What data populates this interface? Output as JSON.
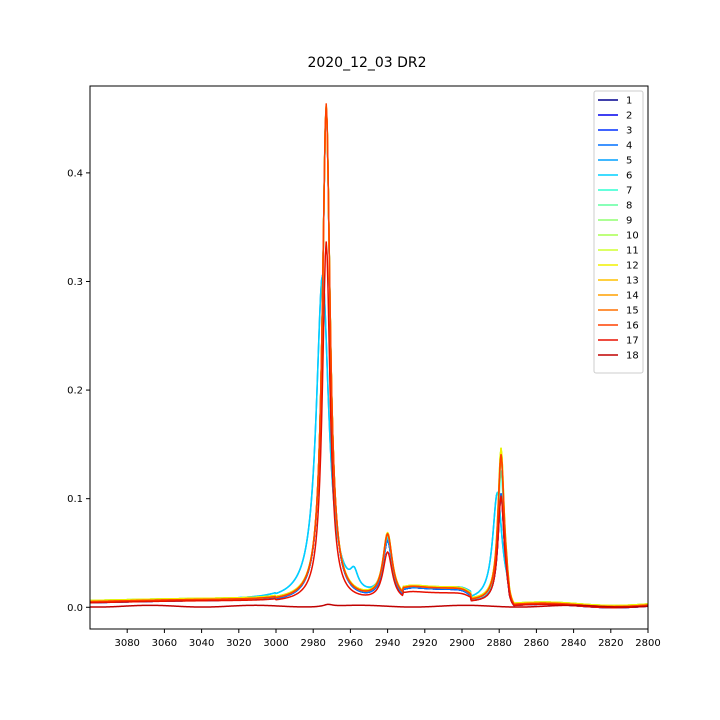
{
  "chart_data": {
    "type": "line",
    "title": "2020_12_03 DR2",
    "xlabel": "",
    "ylabel": "",
    "x_reversed": true,
    "xlim": [
      3100,
      2800
    ],
    "ylim": [
      -0.02,
      0.48
    ],
    "x_ticks": [
      3080,
      3060,
      3040,
      3020,
      3000,
      2980,
      2960,
      2940,
      2920,
      2900,
      2880,
      2860,
      2840,
      2820,
      2800
    ],
    "y_ticks": [
      0.0,
      0.1,
      0.2,
      0.3,
      0.4
    ],
    "y_tick_labels": [
      "0.0",
      "0.1",
      "0.2",
      "0.3",
      "0.4"
    ],
    "grid": false,
    "legend_position": "top-right",
    "series": [
      {
        "name": "1",
        "color": "#00008f",
        "profile": "A",
        "baseline": 0.004,
        "peaks": [
          {
            "x": 2973,
            "h": 0.455,
            "w": 2.5
          },
          {
            "x": 2940,
            "h": 0.055,
            "w": 3.0
          },
          {
            "x": 2879,
            "h": 0.1,
            "w": 2.0
          }
        ]
      },
      {
        "name": "2",
        "color": "#0000ee",
        "profile": "A",
        "baseline": 0.004,
        "peaks": [
          {
            "x": 2973,
            "h": 0.455,
            "w": 2.5
          },
          {
            "x": 2940,
            "h": 0.055,
            "w": 3.0
          },
          {
            "x": 2879,
            "h": 0.1,
            "w": 2.0
          }
        ]
      },
      {
        "name": "3",
        "color": "#0030ff",
        "profile": "A",
        "baseline": 0.004,
        "peaks": [
          {
            "x": 2973,
            "h": 0.455,
            "w": 2.5
          },
          {
            "x": 2940,
            "h": 0.055,
            "w": 3.0
          },
          {
            "x": 2879,
            "h": 0.1,
            "w": 2.0
          }
        ]
      },
      {
        "name": "4",
        "color": "#0070ff",
        "profile": "A",
        "baseline": 0.004,
        "peaks": [
          {
            "x": 2973,
            "h": 0.455,
            "w": 2.5
          },
          {
            "x": 2940,
            "h": 0.055,
            "w": 3.0
          },
          {
            "x": 2879,
            "h": 0.1,
            "w": 2.0
          }
        ]
      },
      {
        "name": "5",
        "color": "#00a0ff",
        "profile": "B",
        "baseline": 0.005,
        "peaks": [
          {
            "x": 2975,
            "h": 0.3,
            "w": 4.0
          },
          {
            "x": 2958,
            "h": 0.015,
            "w": 2.5
          },
          {
            "x": 2940,
            "h": 0.055,
            "w": 3.0
          },
          {
            "x": 2881,
            "h": 0.1,
            "w": 3.0
          }
        ]
      },
      {
        "name": "6",
        "color": "#00d0ff",
        "profile": "B",
        "baseline": 0.005,
        "peaks": [
          {
            "x": 2975,
            "h": 0.3,
            "w": 4.0
          },
          {
            "x": 2958,
            "h": 0.015,
            "w": 2.5
          },
          {
            "x": 2940,
            "h": 0.055,
            "w": 3.0
          },
          {
            "x": 2881,
            "h": 0.1,
            "w": 3.0
          }
        ]
      },
      {
        "name": "7",
        "color": "#30ffd0",
        "profile": "A",
        "baseline": 0.005,
        "peaks": [
          {
            "x": 2973,
            "h": 0.455,
            "w": 2.5
          },
          {
            "x": 2940,
            "h": 0.058,
            "w": 3.0
          },
          {
            "x": 2879,
            "h": 0.12,
            "w": 2.0
          }
        ]
      },
      {
        "name": "8",
        "color": "#60ffa0",
        "profile": "A",
        "baseline": 0.006,
        "peaks": [
          {
            "x": 2973,
            "h": 0.455,
            "w": 2.5
          },
          {
            "x": 2940,
            "h": 0.058,
            "w": 3.0
          },
          {
            "x": 2879,
            "h": 0.13,
            "w": 2.0
          }
        ]
      },
      {
        "name": "9",
        "color": "#90ff70",
        "profile": "A",
        "baseline": 0.006,
        "peaks": [
          {
            "x": 2973,
            "h": 0.455,
            "w": 2.5
          },
          {
            "x": 2940,
            "h": 0.06,
            "w": 3.0
          },
          {
            "x": 2879,
            "h": 0.14,
            "w": 2.0
          }
        ]
      },
      {
        "name": "10",
        "color": "#a8ff50",
        "profile": "A",
        "baseline": 0.006,
        "peaks": [
          {
            "x": 2973,
            "h": 0.455,
            "w": 2.5
          },
          {
            "x": 2940,
            "h": 0.06,
            "w": 3.0
          },
          {
            "x": 2879,
            "h": 0.14,
            "w": 2.0
          }
        ]
      },
      {
        "name": "11",
        "color": "#d0ff30",
        "profile": "A",
        "baseline": 0.006,
        "peaks": [
          {
            "x": 2973,
            "h": 0.455,
            "w": 2.5
          },
          {
            "x": 2940,
            "h": 0.06,
            "w": 3.0
          },
          {
            "x": 2879,
            "h": 0.14,
            "w": 2.0
          }
        ]
      },
      {
        "name": "12",
        "color": "#f0f000",
        "profile": "A",
        "baseline": 0.006,
        "peaks": [
          {
            "x": 2973,
            "h": 0.455,
            "w": 2.5
          },
          {
            "x": 2940,
            "h": 0.06,
            "w": 3.0
          },
          {
            "x": 2879,
            "h": 0.14,
            "w": 2.0
          }
        ]
      },
      {
        "name": "13",
        "color": "#ffc000",
        "profile": "A",
        "baseline": 0.005,
        "peaks": [
          {
            "x": 2973,
            "h": 0.455,
            "w": 2.5
          },
          {
            "x": 2940,
            "h": 0.06,
            "w": 3.0
          },
          {
            "x": 2879,
            "h": 0.135,
            "w": 2.0
          }
        ]
      },
      {
        "name": "14",
        "color": "#ffa000",
        "profile": "A",
        "baseline": 0.005,
        "peaks": [
          {
            "x": 2973,
            "h": 0.455,
            "w": 2.5
          },
          {
            "x": 2940,
            "h": 0.06,
            "w": 3.0
          },
          {
            "x": 2879,
            "h": 0.135,
            "w": 2.0
          }
        ]
      },
      {
        "name": "15",
        "color": "#ff7000",
        "profile": "A",
        "baseline": 0.005,
        "peaks": [
          {
            "x": 2973,
            "h": 0.455,
            "w": 2.5
          },
          {
            "x": 2940,
            "h": 0.06,
            "w": 3.0
          },
          {
            "x": 2879,
            "h": 0.135,
            "w": 2.0
          }
        ]
      },
      {
        "name": "16",
        "color": "#ff4000",
        "profile": "A",
        "baseline": 0.005,
        "peaks": [
          {
            "x": 2973,
            "h": 0.458,
            "w": 2.5
          },
          {
            "x": 2940,
            "h": 0.06,
            "w": 3.0
          },
          {
            "x": 2879,
            "h": 0.135,
            "w": 2.0
          }
        ]
      },
      {
        "name": "17",
        "color": "#e81000",
        "profile": "C",
        "baseline": 0.004,
        "peaks": [
          {
            "x": 2973,
            "h": 0.332,
            "w": 2.5
          },
          {
            "x": 2940,
            "h": 0.045,
            "w": 3.0
          },
          {
            "x": 2879,
            "h": 0.098,
            "w": 2.0
          }
        ]
      },
      {
        "name": "18",
        "color": "#c00000",
        "profile": "D",
        "baseline": 0.001,
        "peaks": [
          {
            "x": 2972,
            "h": 0.002,
            "w": 3.0
          }
        ]
      }
    ]
  }
}
